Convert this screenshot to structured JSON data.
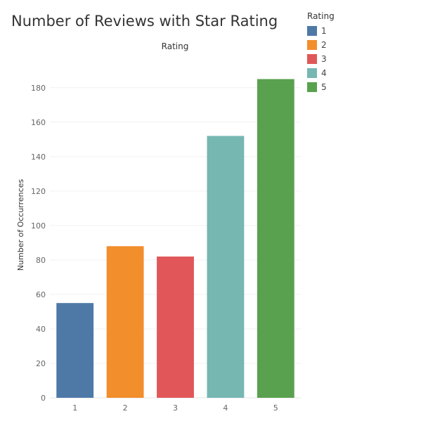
{
  "chart_data": {
    "type": "bar",
    "title": "Number of Reviews with Star Rating",
    "header": "Rating",
    "xlabel": "",
    "ylabel": "Number of Occurrences",
    "categories": [
      "1",
      "2",
      "3",
      "4",
      "5"
    ],
    "values": [
      55,
      88,
      82,
      152,
      185
    ],
    "colors": [
      "#4e79a7",
      "#f28e2b",
      "#e15759",
      "#76b7b2",
      "#59a14f"
    ],
    "ylim": [
      0,
      195
    ],
    "yticks": [
      "0",
      "20",
      "40",
      "60",
      "80",
      "100",
      "120",
      "140",
      "160",
      "180"
    ],
    "grid": true,
    "legend": {
      "title": "Rating",
      "placement": "top-right",
      "items": [
        {
          "label": "1",
          "color": "#4e79a7"
        },
        {
          "label": "2",
          "color": "#f28e2b"
        },
        {
          "label": "3",
          "color": "#e15759"
        },
        {
          "label": "4",
          "color": "#76b7b2"
        },
        {
          "label": "5",
          "color": "#59a14f"
        }
      ]
    }
  }
}
